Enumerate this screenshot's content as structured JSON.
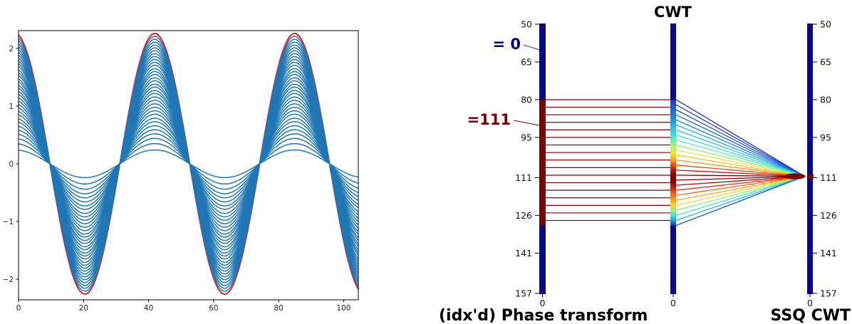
{
  "left_panel": {
    "chart_data": {
      "type": "line",
      "title": "",
      "description": "Family of cosine waves of equal frequency and varying amplitude (blue) with maximum-amplitude envelope curve (red)",
      "x_ticks": [
        0,
        20,
        40,
        60,
        80,
        100
      ],
      "y_ticks": [
        -2,
        -1,
        0,
        1,
        2
      ],
      "xlim": [
        0,
        104.5
      ],
      "ylim": [
        -2.36,
        2.31
      ],
      "period": 43.0,
      "peak_x": 41.9,
      "waveform": "cosine",
      "amplitudes": [
        0.24,
        0.35,
        0.44,
        0.52,
        0.59,
        0.66,
        0.73,
        0.79,
        0.86,
        0.92,
        0.98,
        1.04,
        1.1,
        1.16,
        1.22,
        1.27,
        1.33,
        1.38,
        1.44,
        1.49,
        1.55,
        1.6,
        1.65,
        1.71,
        1.76,
        1.81,
        1.86,
        1.91,
        1.96,
        2.01,
        2.06,
        2.11,
        2.16,
        2.21
      ],
      "envelope_amplitude": 2.26,
      "line_color": "#1f77b4",
      "envelope_color": "#d62728",
      "grid": false
    }
  },
  "right_panel": {
    "cwt_title": "CWT",
    "phase_label": "(idx'd) Phase transform",
    "ssq_label": "SSQ CWT",
    "zero_annotation": "= 0",
    "idx_annotation": "=111",
    "bottom_axis_label": "0",
    "axis_ticks": [
      50,
      65,
      80,
      95,
      111,
      126,
      141,
      157
    ],
    "value_range": [
      50,
      157
    ],
    "bar_color": "#08088c",
    "dark_red": "#7f0000",
    "navy": "#00008b",
    "red_segment": [
      80,
      130
    ],
    "convergence_value": 111,
    "horizontal_line_values": [
      80,
      83,
      86,
      89,
      92,
      95,
      98,
      101,
      104,
      107,
      110,
      113,
      116,
      119,
      122,
      125,
      128
    ],
    "fan_lines": [
      {
        "v": 80,
        "c": "#2136c2"
      },
      {
        "v": 82,
        "c": "#2244cc"
      },
      {
        "v": 84,
        "c": "#2154d4"
      },
      {
        "v": 86,
        "c": "#2168da"
      },
      {
        "v": 88,
        "c": "#1f86e0"
      },
      {
        "v": 90,
        "c": "#1fa2e4"
      },
      {
        "v": 92,
        "c": "#26c2e6"
      },
      {
        "v": 94,
        "c": "#30dcd6"
      },
      {
        "v": 96,
        "c": "#55eeb4"
      },
      {
        "v": 98,
        "c": "#9af268"
      },
      {
        "v": 100,
        "c": "#d8ee3c"
      },
      {
        "v": 102,
        "c": "#fdc423"
      },
      {
        "v": 104,
        "c": "#ff8d18"
      },
      {
        "v": 106,
        "c": "#ef4a10"
      },
      {
        "v": 108,
        "c": "#c01408"
      },
      {
        "v": 110,
        "c": "#7f0000"
      },
      {
        "v": 112,
        "c": "#7f0000"
      },
      {
        "v": 114,
        "c": "#b00d04"
      },
      {
        "v": 116,
        "c": "#e03012"
      },
      {
        "v": 118,
        "c": "#ff6a14"
      },
      {
        "v": 120,
        "c": "#ffa81e"
      },
      {
        "v": 122,
        "c": "#f0dc2e"
      },
      {
        "v": 124,
        "c": "#90f07c"
      },
      {
        "v": 126,
        "c": "#40e8c4"
      },
      {
        "v": 128,
        "c": "#28b6e2"
      },
      {
        "v": 130,
        "c": "#2154d4"
      }
    ],
    "gradient_stops": [
      {
        "o": 0.0,
        "c": "#2136c2"
      },
      {
        "o": 0.08,
        "c": "#2166d8"
      },
      {
        "o": 0.16,
        "c": "#1f92e2"
      },
      {
        "o": 0.24,
        "c": "#28cce8"
      },
      {
        "o": 0.3,
        "c": "#46ecc8"
      },
      {
        "o": 0.36,
        "c": "#a0f272"
      },
      {
        "o": 0.42,
        "c": "#e8ea32"
      },
      {
        "o": 0.47,
        "c": "#ffb01e"
      },
      {
        "o": 0.52,
        "c": "#f04e10"
      },
      {
        "o": 0.56,
        "c": "#bc1206"
      },
      {
        "o": 0.6,
        "c": "#7f0000"
      },
      {
        "o": 0.65,
        "c": "#7f0000"
      },
      {
        "o": 0.7,
        "c": "#cc2210"
      },
      {
        "o": 0.75,
        "c": "#ff6214"
      },
      {
        "o": 0.8,
        "c": "#ffa81e"
      },
      {
        "o": 0.84,
        "c": "#eede30"
      },
      {
        "o": 0.88,
        "c": "#9cf27c"
      },
      {
        "o": 0.92,
        "c": "#40e8cc"
      },
      {
        "o": 0.96,
        "c": "#249ae2"
      },
      {
        "o": 1.0,
        "c": "#2136c2"
      }
    ]
  }
}
